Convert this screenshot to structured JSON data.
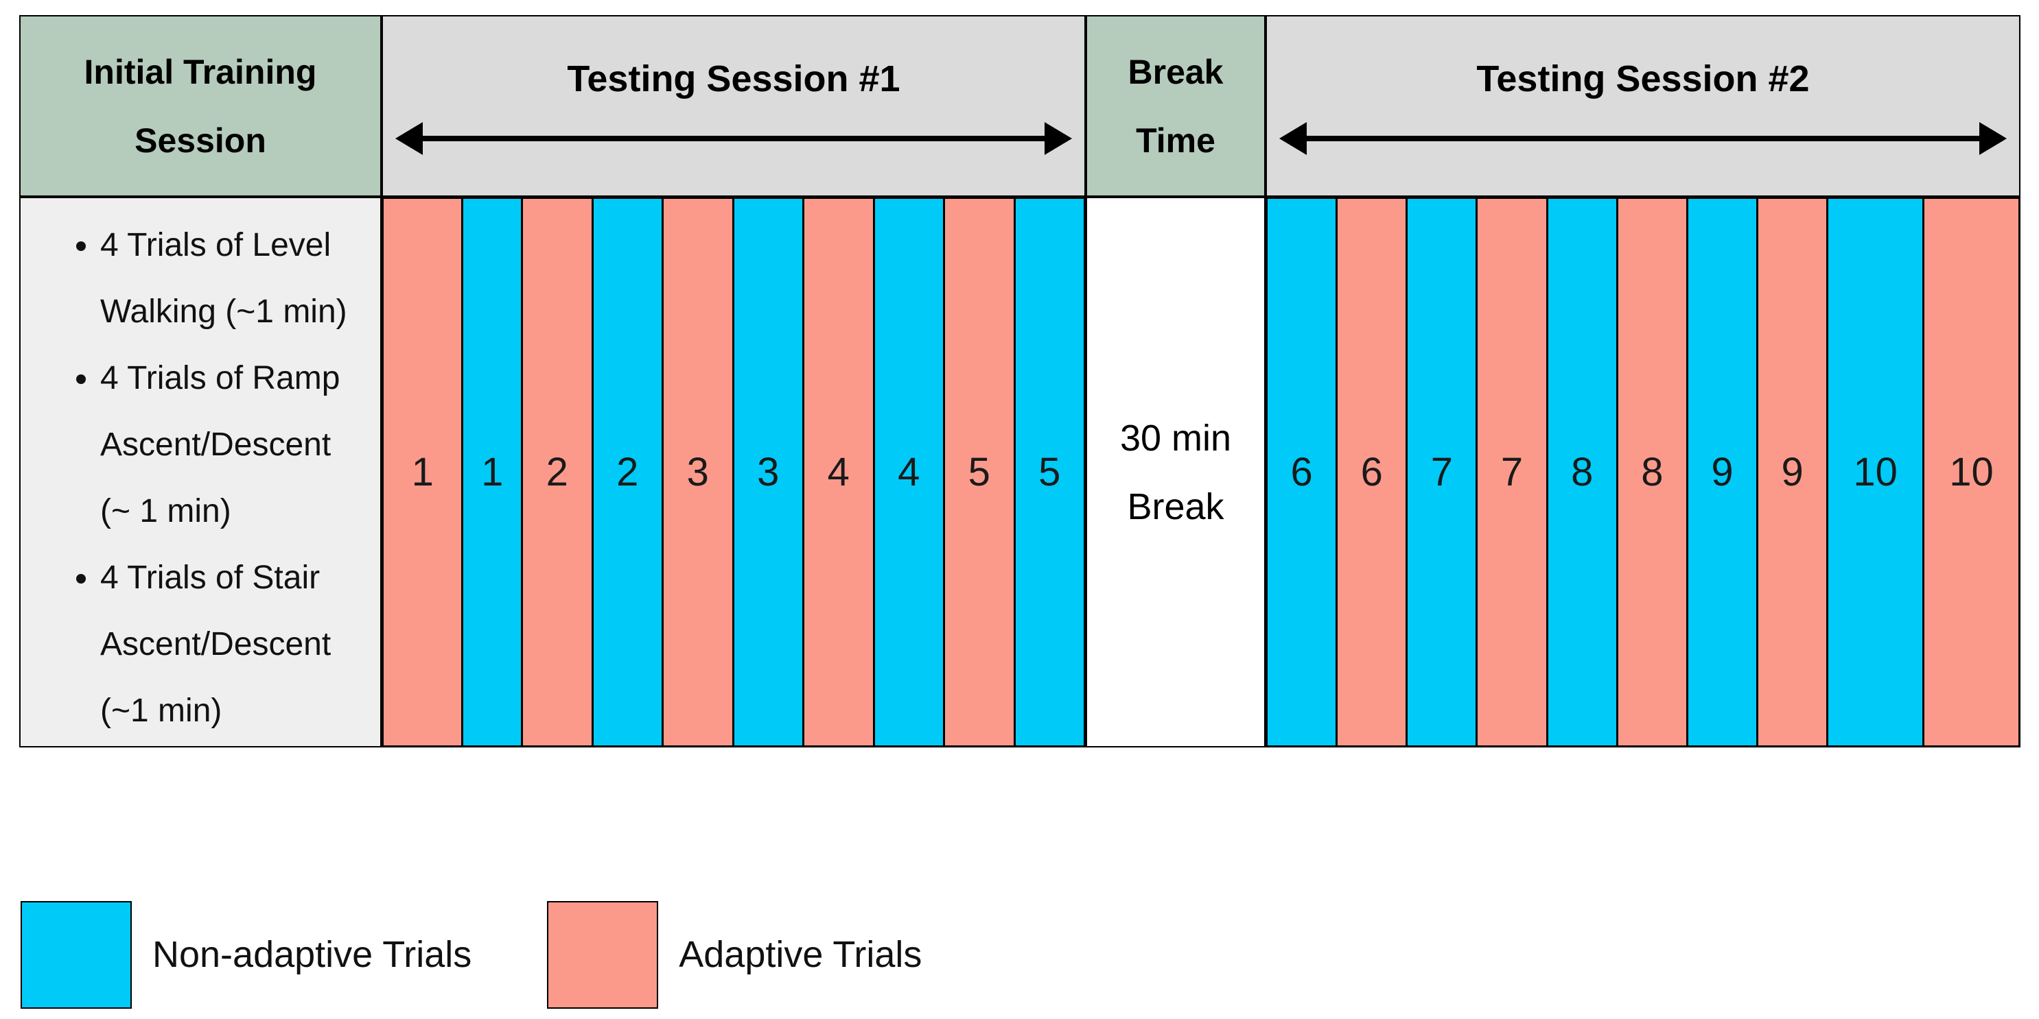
{
  "figure": {
    "training": {
      "header": "Initial Training Session",
      "bullets": [
        "4 Trials of Level Walking (~1 min)",
        "4 Trials of Ramp Ascent/Descent (~ 1 min)",
        "4 Trials of Stair Ascent/Descent (~1 min)"
      ]
    },
    "session1": {
      "header": "Testing Session #1",
      "trials": [
        {
          "label": "1",
          "type": "adaptive"
        },
        {
          "label": "1",
          "type": "non_adaptive"
        },
        {
          "label": "2",
          "type": "adaptive"
        },
        {
          "label": "2",
          "type": "non_adaptive"
        },
        {
          "label": "3",
          "type": "adaptive"
        },
        {
          "label": "3",
          "type": "non_adaptive"
        },
        {
          "label": "4",
          "type": "adaptive"
        },
        {
          "label": "4",
          "type": "non_adaptive"
        },
        {
          "label": "5",
          "type": "adaptive"
        },
        {
          "label": "5",
          "type": "non_adaptive"
        }
      ]
    },
    "break": {
      "header": "Break Time",
      "label": "30 min Break"
    },
    "session2": {
      "header": "Testing Session #2",
      "trials": [
        {
          "label": "6",
          "type": "non_adaptive"
        },
        {
          "label": "6",
          "type": "adaptive"
        },
        {
          "label": "7",
          "type": "non_adaptive"
        },
        {
          "label": "7",
          "type": "adaptive"
        },
        {
          "label": "8",
          "type": "non_adaptive"
        },
        {
          "label": "8",
          "type": "adaptive"
        },
        {
          "label": "9",
          "type": "non_adaptive"
        },
        {
          "label": "9",
          "type": "adaptive"
        },
        {
          "label": "10",
          "type": "non_adaptive"
        },
        {
          "label": "10",
          "type": "adaptive"
        }
      ]
    },
    "legend": [
      {
        "label": "Non-adaptive Trials",
        "type": "non_adaptive"
      },
      {
        "label": "Adaptive Trials",
        "type": "adaptive"
      }
    ],
    "colors": {
      "adaptive": "#FB9A8B",
      "non_adaptive": "#00CAF8",
      "header_green": "#B5CBBC",
      "header_gray": "#DBDBDB",
      "training_body_gray": "#EFEFEF",
      "border": "#000000"
    }
  }
}
